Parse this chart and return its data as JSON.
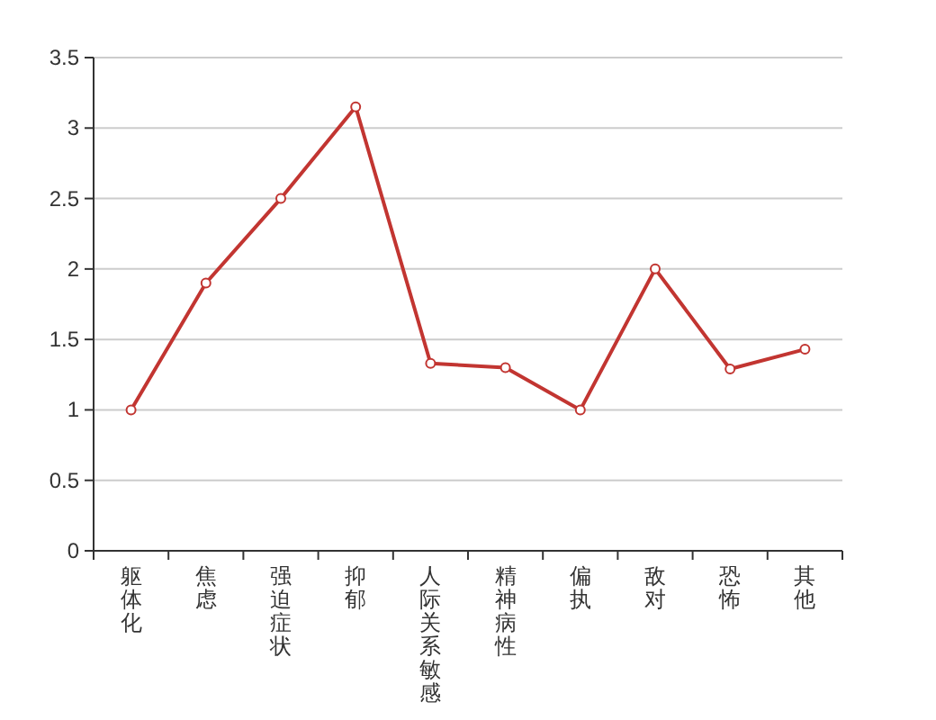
{
  "chart_data": {
    "type": "line",
    "categories": [
      "躯体化",
      "焦虑",
      "强迫症状",
      "抑郁",
      "人际关系敏感",
      "精神病性",
      "偏执",
      "敌对",
      "恐怖",
      "其他"
    ],
    "series": [
      {
        "color": "#c23531",
        "values": [
          1.0,
          1.9,
          2.5,
          3.15,
          1.33,
          1.3,
          1.0,
          2.0,
          1.29,
          1.43
        ]
      }
    ],
    "ylim": [
      0,
      3.5
    ],
    "yticks": [
      0,
      0.5,
      1,
      1.5,
      2,
      2.5,
      3,
      3.5
    ],
    "grid": "y",
    "marker": "circle"
  }
}
